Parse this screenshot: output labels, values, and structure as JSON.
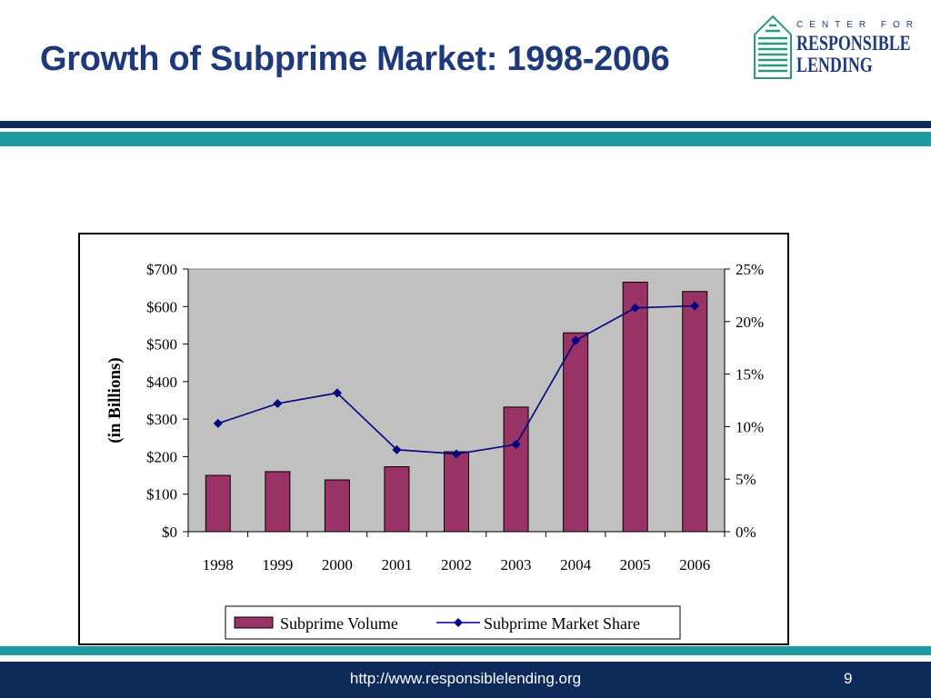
{
  "slide": {
    "title": "Growth of Subprime Market: 1998-2006",
    "footer_url": "http://www.responsiblelending.org",
    "page_number": "9"
  },
  "logo": {
    "line1": "CENTER FOR",
    "line2": "RESPONSIBLE",
    "line3": "LENDING"
  },
  "colors": {
    "title": "#1f3a7a",
    "navy": "#0e2a5a",
    "teal": "#1f9aa0",
    "bar": "#993366",
    "line": "#000080",
    "plot_bg": "#c0c0c0"
  },
  "chart_data": {
    "type": "bar",
    "categories": [
      "1998",
      "1999",
      "2000",
      "2001",
      "2002",
      "2003",
      "2004",
      "2005",
      "2006"
    ],
    "series": [
      {
        "name": "Subprime Volume",
        "type": "bar",
        "axis": "left",
        "values": [
          150,
          160,
          138,
          173,
          213,
          332,
          530,
          665,
          640
        ]
      },
      {
        "name": "Subprime Market Share",
        "type": "line",
        "axis": "right",
        "values": [
          10.3,
          12.2,
          13.2,
          7.8,
          7.4,
          8.3,
          18.2,
          21.3,
          21.5
        ]
      }
    ],
    "ylabel": "(in Billions)",
    "ylim": [
      0,
      700
    ],
    "yticks": [
      "$0",
      "$100",
      "$200",
      "$300",
      "$400",
      "$500",
      "$600",
      "$700"
    ],
    "y2lim": [
      0,
      25
    ],
    "y2ticks": [
      "0%",
      "5%",
      "10%",
      "15%",
      "20%",
      "25%"
    ],
    "legend_position": "bottom",
    "grid": false
  }
}
